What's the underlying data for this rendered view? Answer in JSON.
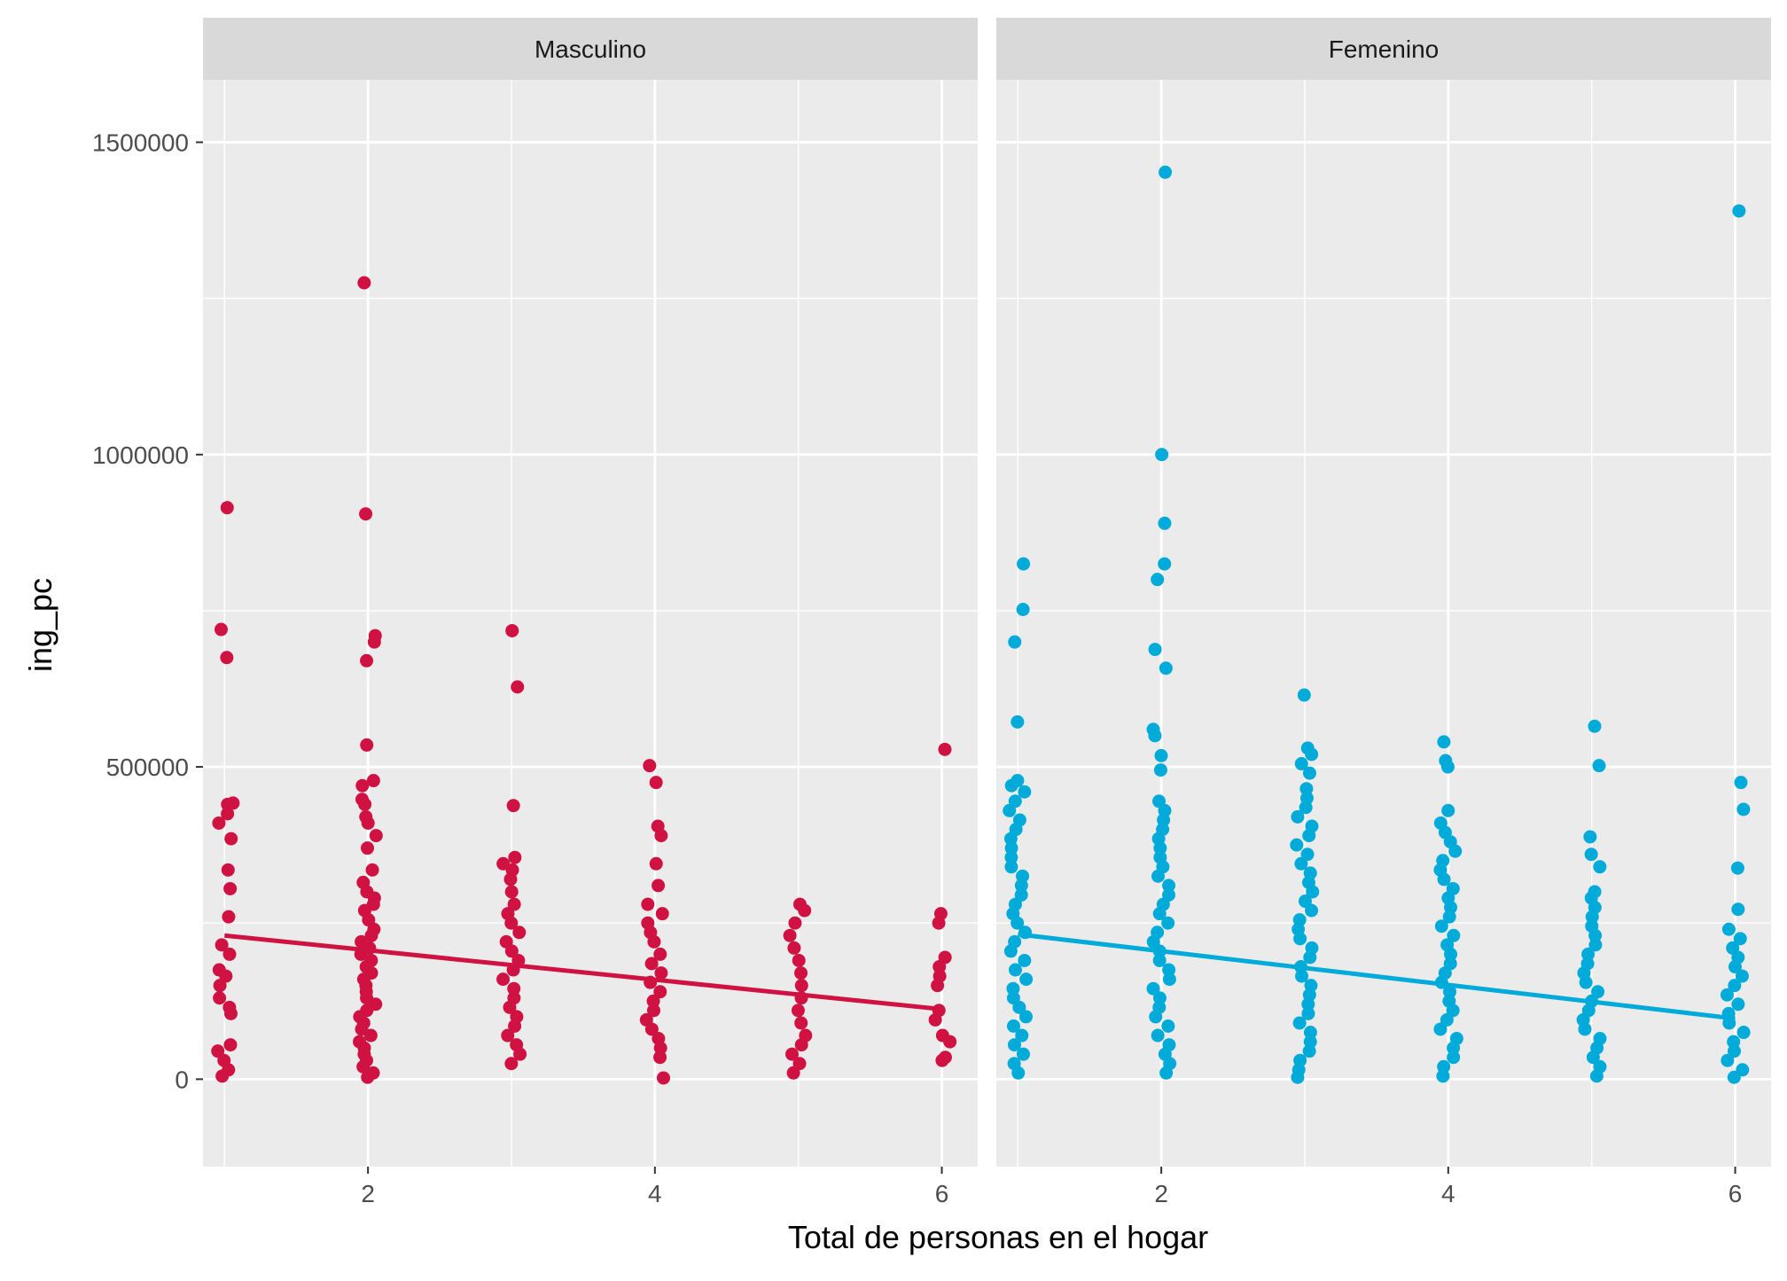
{
  "chart_data": {
    "type": "scatter",
    "xlabel": "Total de personas en el hogar",
    "ylabel": "ing_pc",
    "xlim": [
      0.85,
      6.25
    ],
    "ylim": [
      -140000,
      1600000
    ],
    "x_ticks": [
      2,
      4,
      6
    ],
    "y_ticks": [
      0,
      500000,
      1000000,
      1500000
    ],
    "y_tick_labels": [
      "0",
      "500000",
      "1000000",
      "1500000"
    ],
    "grid": true,
    "legend": "none",
    "panels": [
      {
        "label": "Masculino",
        "color": "#d01243",
        "groups": [
          {
            "x": 1,
            "values": [
              915000,
              720000,
              675000,
              442000,
              440000,
              425000,
              410000,
              385000,
              335000,
              305000,
              260000,
              215000,
              200000,
              175000,
              165000,
              150000,
              130000,
              115000,
              105000,
              55000,
              45000,
              30000,
              15000,
              5000
            ]
          },
          {
            "x": 2,
            "values": [
              1275000,
              905000,
              710000,
              700000,
              670000,
              535000,
              478000,
              470000,
              448000,
              440000,
              420000,
              410000,
              390000,
              370000,
              335000,
              315000,
              300000,
              290000,
              280000,
              270000,
              255000,
              240000,
              230000,
              220000,
              210000,
              200000,
              190000,
              180000,
              170000,
              160000,
              150000,
              140000,
              130000,
              120000,
              110000,
              100000,
              90000,
              80000,
              70000,
              60000,
              50000,
              40000,
              30000,
              20000,
              10000,
              3000
            ]
          },
          {
            "x": 3,
            "values": [
              718000,
              628000,
              438000,
              355000,
              345000,
              335000,
              320000,
              300000,
              280000,
              265000,
              250000,
              235000,
              220000,
              205000,
              190000,
              175000,
              160000,
              145000,
              130000,
              115000,
              100000,
              85000,
              70000,
              55000,
              40000,
              25000
            ]
          },
          {
            "x": 4,
            "values": [
              502000,
              475000,
              405000,
              390000,
              345000,
              310000,
              280000,
              265000,
              250000,
              235000,
              220000,
              200000,
              185000,
              170000,
              155000,
              140000,
              125000,
              110000,
              95000,
              80000,
              65000,
              50000,
              35000,
              2000
            ]
          },
          {
            "x": 5,
            "values": [
              280000,
              270000,
              250000,
              230000,
              210000,
              190000,
              170000,
              150000,
              130000,
              110000,
              90000,
              70000,
              55000,
              40000,
              25000,
              10000
            ]
          },
          {
            "x": 6,
            "values": [
              528000,
              265000,
              250000,
              195000,
              180000,
              165000,
              150000,
              110000,
              95000,
              70000,
              60000,
              35000,
              30000
            ]
          }
        ],
        "trend": {
          "x": [
            1,
            6
          ],
          "y": [
            230000,
            112000
          ]
        }
      },
      {
        "label": "Femenino",
        "color": "#00abd9",
        "groups": [
          {
            "x": 1,
            "values": [
              825000,
              752000,
              700000,
              572000,
              478000,
              470000,
              460000,
              445000,
              430000,
              415000,
              400000,
              385000,
              370000,
              355000,
              340000,
              325000,
              310000,
              295000,
              280000,
              265000,
              250000,
              235000,
              220000,
              205000,
              190000,
              175000,
              160000,
              145000,
              130000,
              115000,
              100000,
              85000,
              70000,
              55000,
              40000,
              25000,
              10000
            ]
          },
          {
            "x": 2,
            "values": [
              1452000,
              1000000,
              890000,
              825000,
              800000,
              688000,
              658000,
              560000,
              550000,
              518000,
              495000,
              445000,
              430000,
              415000,
              400000,
              385000,
              370000,
              355000,
              340000,
              325000,
              310000,
              295000,
              280000,
              265000,
              250000,
              235000,
              220000,
              205000,
              190000,
              175000,
              160000,
              145000,
              130000,
              115000,
              100000,
              85000,
              70000,
              55000,
              40000,
              25000,
              10000
            ]
          },
          {
            "x": 3,
            "values": [
              615000,
              530000,
              520000,
              505000,
              490000,
              465000,
              450000,
              435000,
              420000,
              405000,
              390000,
              375000,
              360000,
              345000,
              330000,
              315000,
              300000,
              285000,
              270000,
              255000,
              240000,
              225000,
              210000,
              195000,
              180000,
              165000,
              150000,
              135000,
              120000,
              105000,
              90000,
              75000,
              60000,
              45000,
              30000,
              15000,
              3000
            ]
          },
          {
            "x": 4,
            "values": [
              540000,
              510000,
              500000,
              430000,
              410000,
              395000,
              380000,
              365000,
              350000,
              335000,
              320000,
              305000,
              290000,
              275000,
              260000,
              245000,
              230000,
              215000,
              200000,
              185000,
              170000,
              155000,
              140000,
              125000,
              110000,
              95000,
              80000,
              65000,
              50000,
              35000,
              20000,
              5000
            ]
          },
          {
            "x": 5,
            "values": [
              565000,
              502000,
              388000,
              360000,
              340000,
              300000,
              290000,
              275000,
              260000,
              245000,
              230000,
              215000,
              200000,
              185000,
              170000,
              155000,
              140000,
              125000,
              110000,
              95000,
              80000,
              65000,
              50000,
              35000,
              20000,
              5000
            ]
          },
          {
            "x": 6,
            "values": [
              1390000,
              475000,
              432000,
              338000,
              272000,
              240000,
              225000,
              210000,
              195000,
              180000,
              165000,
              150000,
              135000,
              120000,
              105000,
              90000,
              75000,
              60000,
              45000,
              30000,
              15000,
              3000
            ]
          }
        ],
        "trend": {
          "x": [
            1,
            6
          ],
          "y": [
            232000,
            97000
          ]
        }
      }
    ]
  }
}
